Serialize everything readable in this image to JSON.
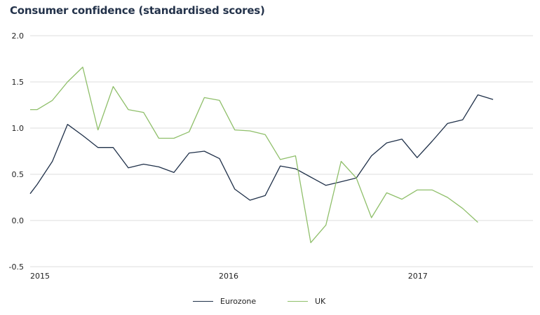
{
  "chart_data": {
    "type": "line",
    "title": "Consumer confidence (standardised scores)",
    "xlabel": "",
    "ylabel": "",
    "ylim": [
      -0.5,
      2.0
    ],
    "yticks": [
      "2.0",
      "1.5",
      "1.0",
      "0.5",
      "0.0",
      "-0.5"
    ],
    "ytick_values": [
      2.0,
      1.5,
      1.0,
      0.5,
      0.0,
      -0.5
    ],
    "xticks": [
      {
        "label": "2015",
        "index": 0
      },
      {
        "label": "2016",
        "index": 12.95
      },
      {
        "label": "2017",
        "index": 25.4
      }
    ],
    "grid": true,
    "legend": "bottom-center",
    "series": [
      {
        "name": "Eurozone",
        "color": "#1f3049",
        "values": [
          0.29,
          0.39,
          0.64,
          1.04,
          0.92,
          0.79,
          0.79,
          0.57,
          0.61,
          0.58,
          0.52,
          0.73,
          0.75,
          0.67,
          0.34,
          0.22,
          0.27,
          0.59,
          0.56,
          0.47,
          0.38,
          0.42,
          0.46,
          0.7,
          0.84,
          0.88,
          0.68,
          0.86,
          1.05,
          1.09,
          1.36,
          1.31
        ]
      },
      {
        "name": "UK",
        "color": "#8fbf6a",
        "values": [
          1.2,
          1.2,
          1.3,
          1.5,
          1.66,
          0.98,
          1.45,
          1.2,
          1.17,
          0.89,
          0.89,
          0.96,
          1.33,
          1.3,
          0.98,
          0.97,
          0.93,
          0.66,
          0.7,
          -0.24,
          -0.05,
          0.64,
          0.46,
          0.03,
          0.3,
          0.23,
          0.33,
          0.33,
          0.25,
          0.13,
          -0.02
        ]
      }
    ]
  },
  "legend": {
    "items": [
      {
        "label": "Eurozone",
        "color": "#1f3049"
      },
      {
        "label": "UK",
        "color": "#8fbf6a"
      }
    ]
  }
}
